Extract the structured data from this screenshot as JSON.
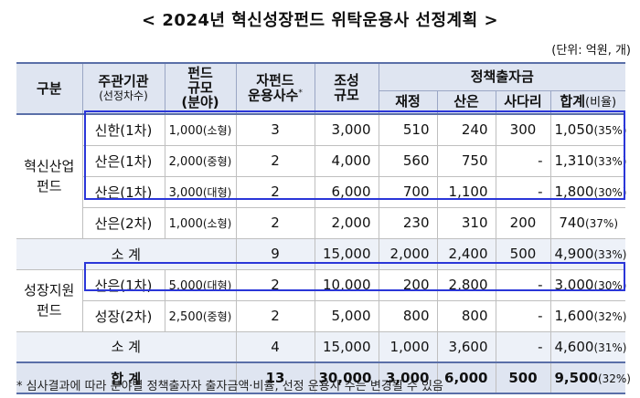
{
  "title": "< 2024년 혁신성장펀드 위탁운용사 선정계획 >",
  "unit": "(단위: 억원, 개)",
  "headers": {
    "category": "구분",
    "org": "주관기관",
    "org_sub": "(선정차수)",
    "fund_size": "펀드",
    "fund_size_2": "규모",
    "fund_size_sub": "(분야)",
    "gp_count": "자펀드",
    "gp_count_2": "운용사수",
    "gp_mark": "*",
    "target_size": "조성",
    "target_size_2": "규모",
    "policy": "정책출자금",
    "finance": "재정",
    "kdb": "산은",
    "private": "사다리",
    "sum": "합계",
    "sum_ratio": "(비율)"
  },
  "groups": {
    "innovation": "혁신산업\n펀드",
    "innovation_l1": "혁신산업",
    "innovation_l2": "펀드",
    "growth_l1": "성장지원",
    "growth_l2": "펀드"
  },
  "rows": [
    {
      "org": "신한(1차)",
      "size": "1,000",
      "size_type": "(소형)",
      "gp": "3",
      "target": "3,000",
      "finance": "510",
      "kdb": "240",
      "private": "300",
      "sum": "1,050",
      "ratio": "(35%)"
    },
    {
      "org": "산은(1차)",
      "size": "2,000",
      "size_type": "(중형)",
      "gp": "2",
      "target": "4,000",
      "finance": "560",
      "kdb": "750",
      "private": "-",
      "sum": "1,310",
      "ratio": "(33%)"
    },
    {
      "org": "산은(1차)",
      "size": "3,000",
      "size_type": "(대형)",
      "gp": "2",
      "target": "6,000",
      "finance": "700",
      "kdb": "1,100",
      "private": "-",
      "sum": "1,800",
      "ratio": "(30%)"
    },
    {
      "org": "산은(2차)",
      "size": "1,000",
      "size_type": "(소형)",
      "gp": "2",
      "target": "2,000",
      "finance": "230",
      "kdb": "310",
      "private": "200",
      "sum": "740",
      "ratio": "(37%)"
    },
    {
      "org": "산은(1차)",
      "size": "5,000",
      "size_type": "(대형)",
      "gp": "2",
      "target": "10,000",
      "finance": "200",
      "kdb": "2,800",
      "private": "-",
      "sum": "3,000",
      "ratio": "(30%)"
    },
    {
      "org": "성장(2차)",
      "size": "2,500",
      "size_type": "(중형)",
      "gp": "2",
      "target": "5,000",
      "finance": "800",
      "kdb": "800",
      "private": "-",
      "sum": "1,600",
      "ratio": "(32%)"
    }
  ],
  "subtotals": [
    {
      "label": "소 계",
      "gp": "9",
      "target": "15,000",
      "finance": "2,000",
      "kdb": "2,400",
      "private": "500",
      "sum": "4,900",
      "ratio": "(33%)"
    },
    {
      "label": "소 계",
      "gp": "4",
      "target": "15,000",
      "finance": "1,000",
      "kdb": "3,600",
      "private": "-",
      "sum": "4,600",
      "ratio": "(31%)"
    }
  ],
  "total": {
    "label": "합 계",
    "gp": "13",
    "target": "30,000",
    "finance": "3,000",
    "kdb": "6,000",
    "private": "500",
    "sum": "9,500",
    "ratio": "(32%)"
  },
  "footnote": "* 심사결과에 따라 분야별 정책출자자 출자금액·비율, 선정 운용사 수는 변경될 수 있음",
  "colors": {
    "header_bg": "#dfe5f1",
    "highlight_border": "#2a36d8",
    "rule": "#5a6fa8"
  }
}
